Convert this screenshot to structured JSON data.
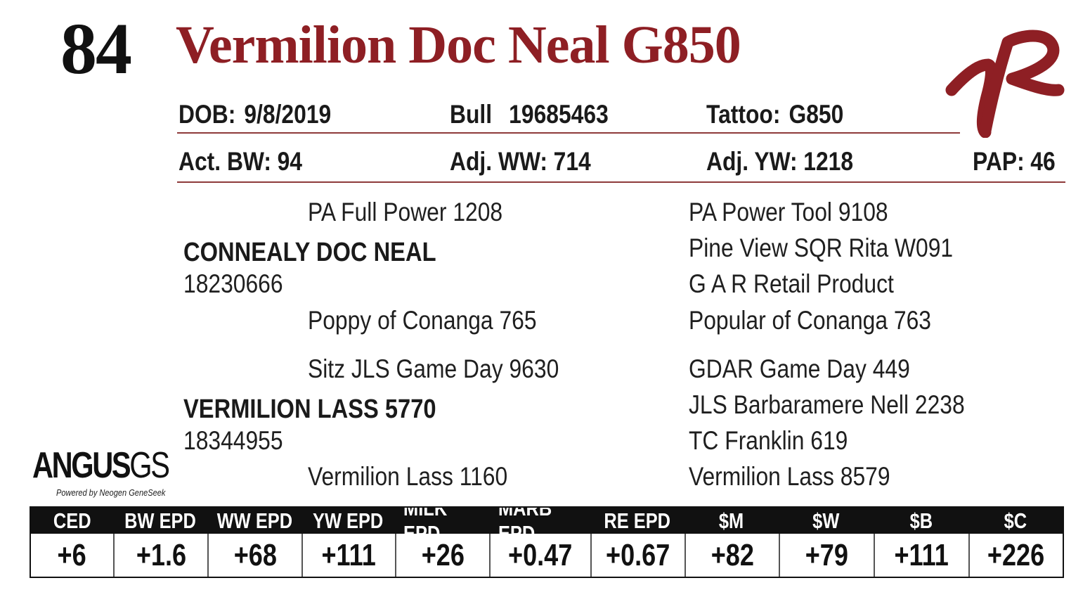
{
  "lot_number": "84",
  "animal_name": "Vermilion Doc Neal G850",
  "colors": {
    "title_red": "#8e1f24",
    "rule_red": "#8e3a3a",
    "header_black": "#111111"
  },
  "logo_icon": "vr-brand-icon",
  "info_row1": {
    "dob_label": "DOB:",
    "dob_value": "9/8/2019",
    "type_label": "Bull",
    "reg_number": "19685463",
    "tattoo_label": "Tattoo:",
    "tattoo_value": "G850"
  },
  "info_row2": {
    "bw_label": "Act. BW:",
    "bw_value": "94",
    "ww_label": "Adj. WW:",
    "ww_value": "714",
    "yw_label": "Adj. YW:",
    "yw_value": "1218",
    "pap_label": "PAP:",
    "pap_value": "46"
  },
  "pedigree": {
    "sire": "CONNEALY DOC NEAL",
    "sire_reg": "18230666",
    "sire_sire": "PA Full Power 1208",
    "sire_dam": "Poppy of Conanga 765",
    "sire_sire_sire": "PA Power Tool 9108",
    "sire_sire_dam": "Pine View SQR Rita W091",
    "sire_dam_sire": "G A R Retail Product",
    "sire_dam_dam": "Popular of Conanga 763",
    "dam": "VERMILION LASS 5770",
    "dam_reg": "18344955",
    "dam_sire": "Sitz JLS Game Day 9630",
    "dam_dam": "Vermilion Lass 1160",
    "dam_sire_sire": "GDAR Game Day 449",
    "dam_sire_dam": "JLS Barbaramere Nell 2238",
    "dam_dam_sire": "TC Franklin 619",
    "dam_dam_dam": "Vermilion Lass 8579"
  },
  "brand": {
    "main": "ANGUS",
    "suffix": "GS",
    "tagline": "Powered by Neogen GeneSeek"
  },
  "epd_headers": [
    "CED",
    "BW EPD",
    "WW EPD",
    "YW EPD",
    "MILK EPD",
    "MARB EPD",
    "RE EPD",
    "$M",
    "$W",
    "$B",
    "$C"
  ],
  "epd_values": [
    "+6",
    "+1.6",
    "+68",
    "+111",
    "+26",
    "+0.47",
    "+0.67",
    "+82",
    "+79",
    "+111",
    "+226"
  ]
}
